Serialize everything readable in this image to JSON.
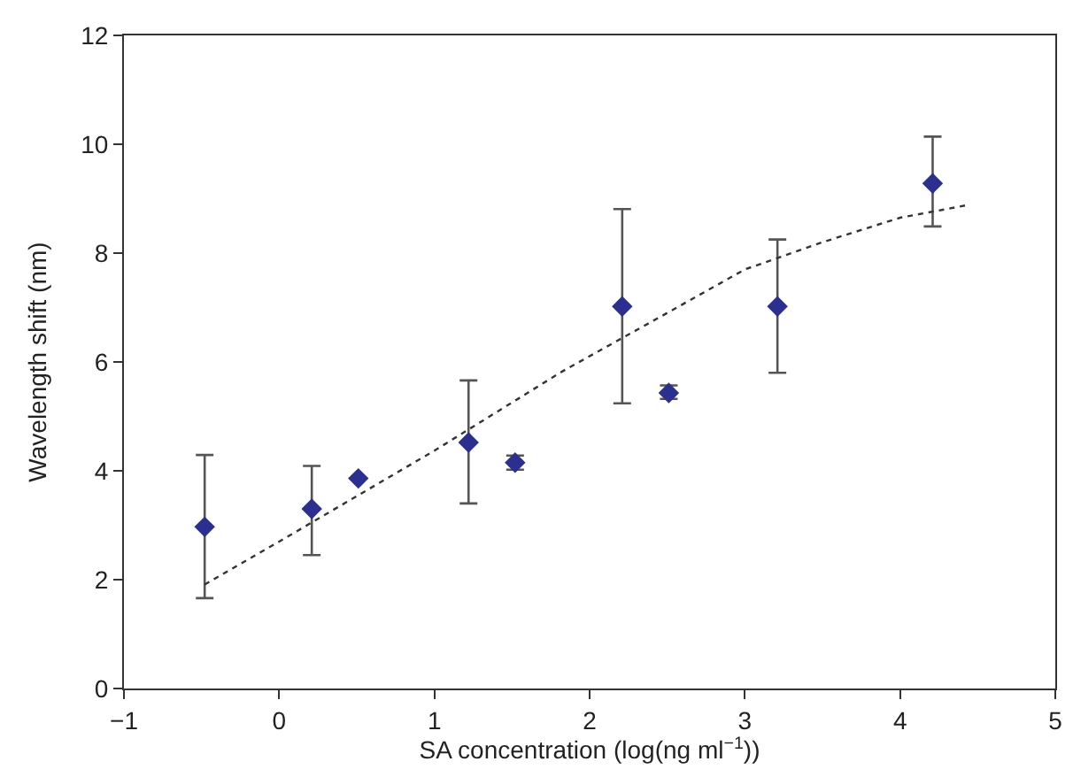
{
  "chart_data": {
    "type": "scatter",
    "xlabel": "SA concentration (log(ng ml$^{−1}$))",
    "ylabel": "Wavelength shift (nm)",
    "xlim": [
      -1,
      5
    ],
    "xticks": [
      {
        "value": -1,
        "label": "−1"
      },
      0,
      1,
      2,
      3,
      4,
      5
    ],
    "ylim": [
      0,
      12
    ],
    "yticks": [
      0,
      2,
      4,
      6,
      8,
      10,
      12
    ],
    "series": [
      {
        "color": "#2b2f8f",
        "marker": "diamond",
        "x": [
          -0.48,
          0.21,
          0.51,
          1.22,
          1.52,
          2.21,
          2.51,
          3.21,
          4.21
        ],
        "values": [
          2.97,
          3.3,
          3.86,
          4.52,
          4.15,
          7.02,
          5.43,
          7.02,
          9.28
        ],
        "errors": [
          [
            1.66,
            4.29
          ],
          [
            2.45,
            4.09
          ],
          null,
          [
            3.4,
            5.66
          ],
          [
            4.02,
            4.28
          ],
          [
            5.24,
            8.81
          ],
          [
            5.32,
            5.57
          ],
          [
            5.8,
            8.25
          ],
          [
            8.49,
            10.14
          ]
        ]
      },
      {
        "type": "line",
        "color": "#333333",
        "line_style": "dotted",
        "marker": "none",
        "x": [
          -0.48,
          0,
          1,
          1.82,
          2.5,
          3,
          3.5,
          4,
          4.45
        ],
        "values": [
          1.91,
          2.7,
          4.37,
          5.82,
          6.9,
          7.7,
          8.2,
          8.65,
          8.89
        ]
      }
    ]
  }
}
